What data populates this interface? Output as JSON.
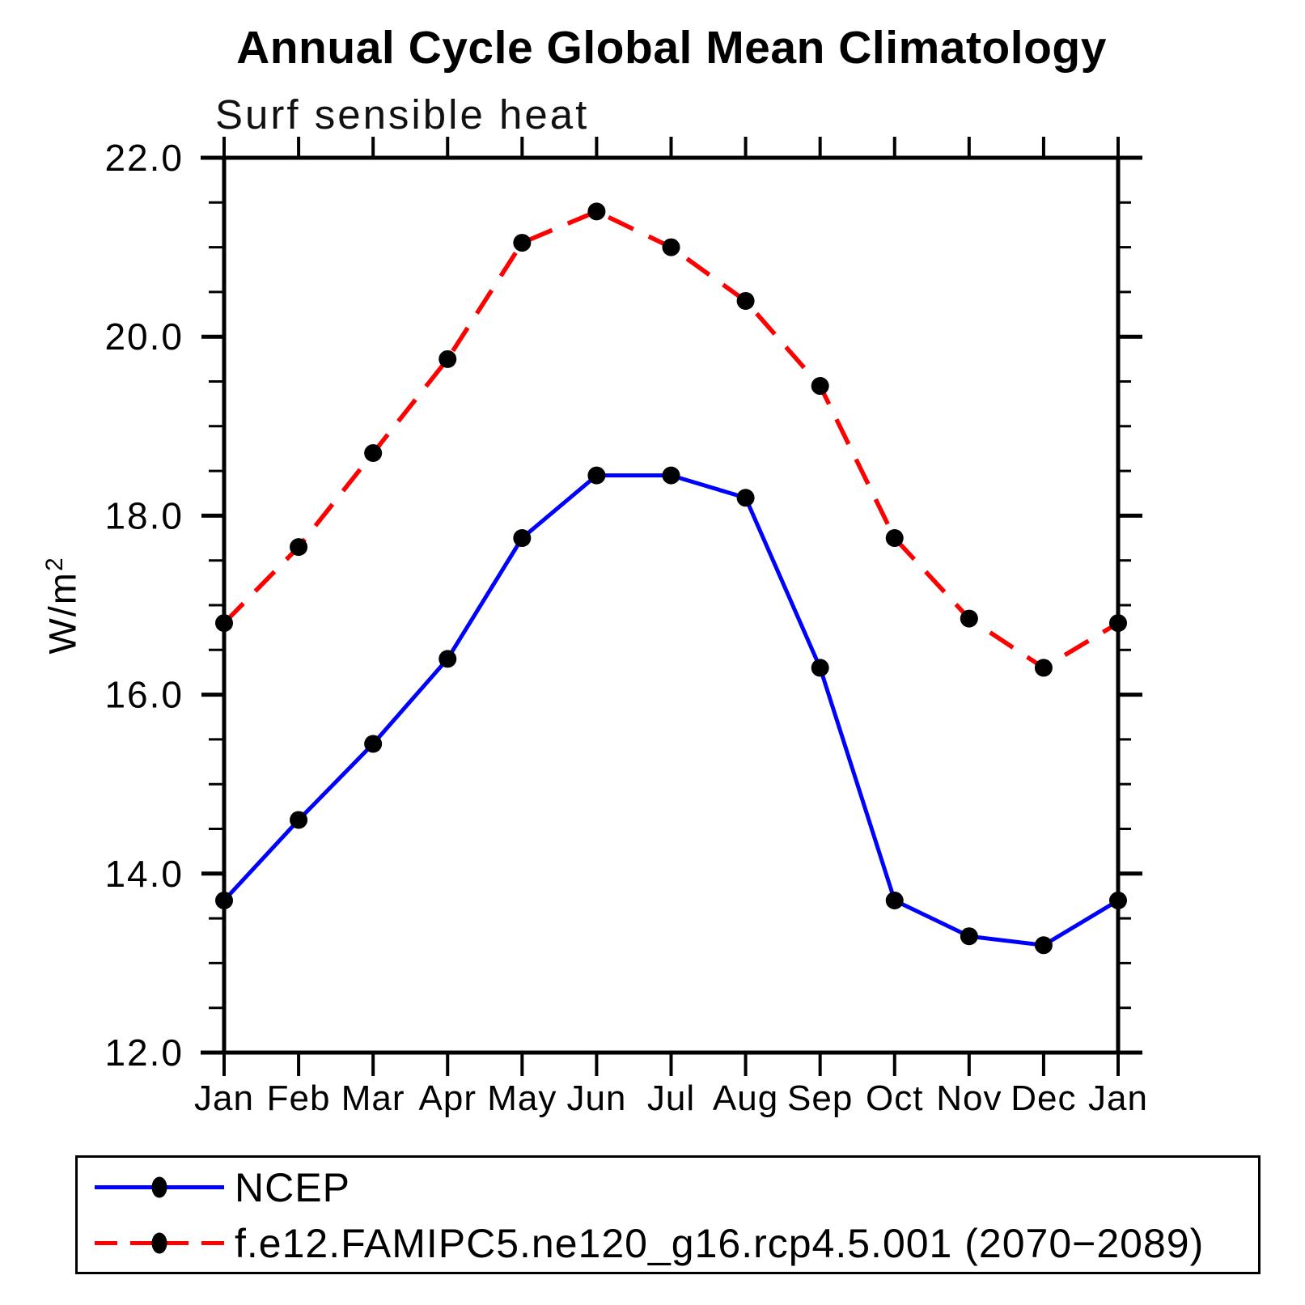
{
  "title": "Annual Cycle Global Mean Climatology",
  "subtitle": "Surf sensible heat",
  "ylabel_base": "W/m",
  "ylabel_exponent": "2",
  "chart_data": {
    "type": "line",
    "title": "Annual Cycle Global Mean Climatology",
    "subtitle": "Surf sensible heat",
    "ylabel": "W/m²",
    "xlabel": "",
    "grid": false,
    "legend_position": "bottom",
    "ylim": [
      12.0,
      22.0
    ],
    "y_major_ticks": [
      22.0,
      20.0,
      18.0,
      16.0,
      14.0,
      12.0
    ],
    "y_major_tick_labels": [
      "22.0",
      "20.0",
      "18.0",
      "16.0",
      "14.0",
      "12.0"
    ],
    "y_minor_step": 0.5,
    "categories": [
      "Jan",
      "Feb",
      "Mar",
      "Apr",
      "May",
      "Jun",
      "Jul",
      "Aug",
      "Sep",
      "Oct",
      "Nov",
      "Dec",
      "Jan"
    ],
    "series": [
      {
        "name": "NCEP",
        "color": "#0000ff",
        "line_style": "solid",
        "marker": "filled-circle",
        "marker_color": "#000000",
        "values": [
          13.7,
          14.6,
          15.45,
          16.4,
          17.75,
          18.45,
          18.45,
          18.2,
          16.3,
          13.7,
          13.3,
          13.2,
          13.7
        ]
      },
      {
        "name": "f.e12.FAMIPC5.ne120_g16.rcp4.5.001 (2070−2089)",
        "color": "#ff0000",
        "line_style": "dashed",
        "marker": "filled-circle",
        "marker_color": "#000000",
        "values": [
          16.8,
          17.65,
          18.7,
          19.75,
          21.05,
          21.4,
          21.0,
          20.4,
          19.45,
          17.75,
          16.85,
          16.3,
          16.8
        ]
      }
    ]
  }
}
